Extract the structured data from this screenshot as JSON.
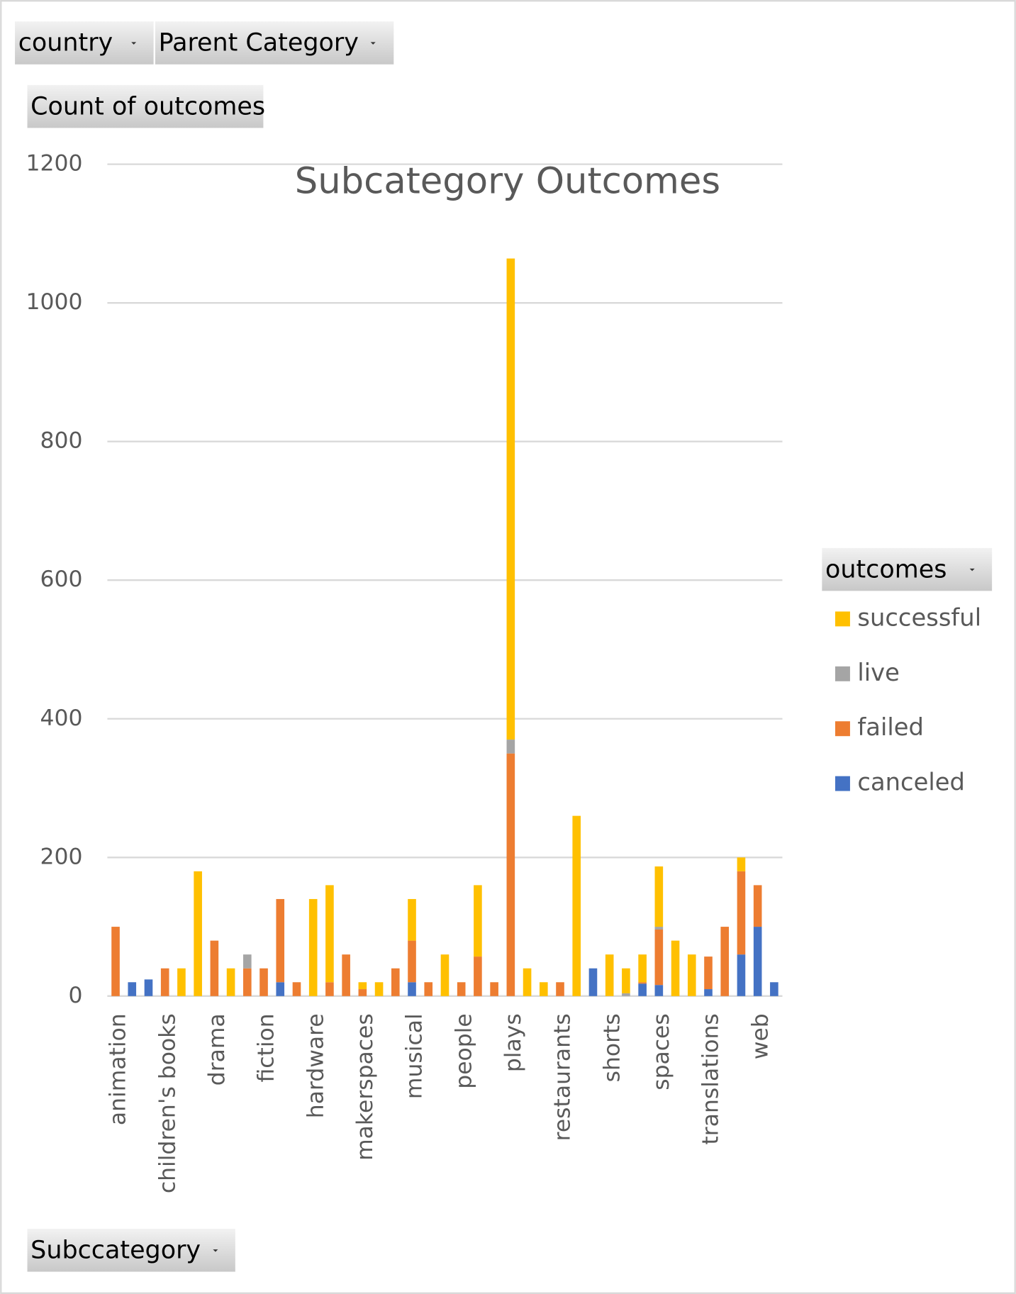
{
  "filters": {
    "country": "country",
    "parent_category": "Parent Category",
    "values_field": "Count of outcomes",
    "legend_field": "outcomes",
    "axis_field": "Subccategory"
  },
  "chart_data": {
    "type": "stacked_bar",
    "title": "Subcategory Outcomes",
    "categories": [
      "animation",
      null,
      null,
      "children's books",
      null,
      null,
      "drama",
      null,
      null,
      "fiction",
      null,
      null,
      "hardware",
      null,
      null,
      "makerspaces",
      null,
      null,
      "musical",
      null,
      null,
      "people",
      null,
      null,
      "plays",
      null,
      null,
      "restaurants",
      null,
      null,
      "shorts",
      null,
      null,
      "spaces",
      null,
      null,
      "translations",
      null,
      null,
      "web",
      null
    ],
    "series": [
      {
        "name": "canceled",
        "color": "#4472c4",
        "values": [
          null,
          20,
          24,
          null,
          null,
          null,
          null,
          null,
          null,
          null,
          20,
          null,
          null,
          null,
          null,
          null,
          null,
          null,
          20,
          null,
          null,
          null,
          null,
          null,
          null,
          null,
          null,
          null,
          null,
          40,
          null,
          null,
          18,
          16,
          null,
          null,
          10,
          null,
          60,
          100,
          20
        ]
      },
      {
        "name": "failed",
        "color": "#ed7d31",
        "values": [
          100,
          null,
          null,
          40,
          null,
          null,
          80,
          null,
          40,
          40,
          120,
          20,
          null,
          20,
          60,
          10,
          null,
          40,
          60,
          20,
          null,
          20,
          57,
          20,
          350,
          null,
          null,
          20,
          null,
          null,
          null,
          null,
          2,
          80,
          null,
          null,
          47,
          100,
          120,
          60,
          null
        ]
      },
      {
        "name": "live",
        "color": "#a5a5a5",
        "values": [
          null,
          null,
          null,
          null,
          null,
          null,
          null,
          null,
          20,
          null,
          null,
          null,
          null,
          null,
          null,
          null,
          null,
          null,
          null,
          null,
          null,
          null,
          null,
          null,
          20,
          null,
          null,
          null,
          null,
          null,
          null,
          4,
          null,
          4,
          null,
          null,
          null,
          null,
          null,
          null,
          null
        ]
      },
      {
        "name": "successful",
        "color": "#ffc000",
        "values": [
          null,
          null,
          null,
          null,
          40,
          180,
          null,
          40,
          null,
          null,
          null,
          null,
          140,
          140,
          null,
          10,
          20,
          null,
          60,
          null,
          60,
          null,
          103,
          null,
          694,
          40,
          20,
          null,
          260,
          null,
          60,
          36,
          40,
          87,
          80,
          60,
          null,
          null,
          20,
          null,
          null
        ]
      }
    ],
    "ylim": [
      0,
      1200
    ],
    "yticks": [
      0,
      200,
      400,
      600,
      800,
      1000,
      1200
    ],
    "grid": true
  }
}
